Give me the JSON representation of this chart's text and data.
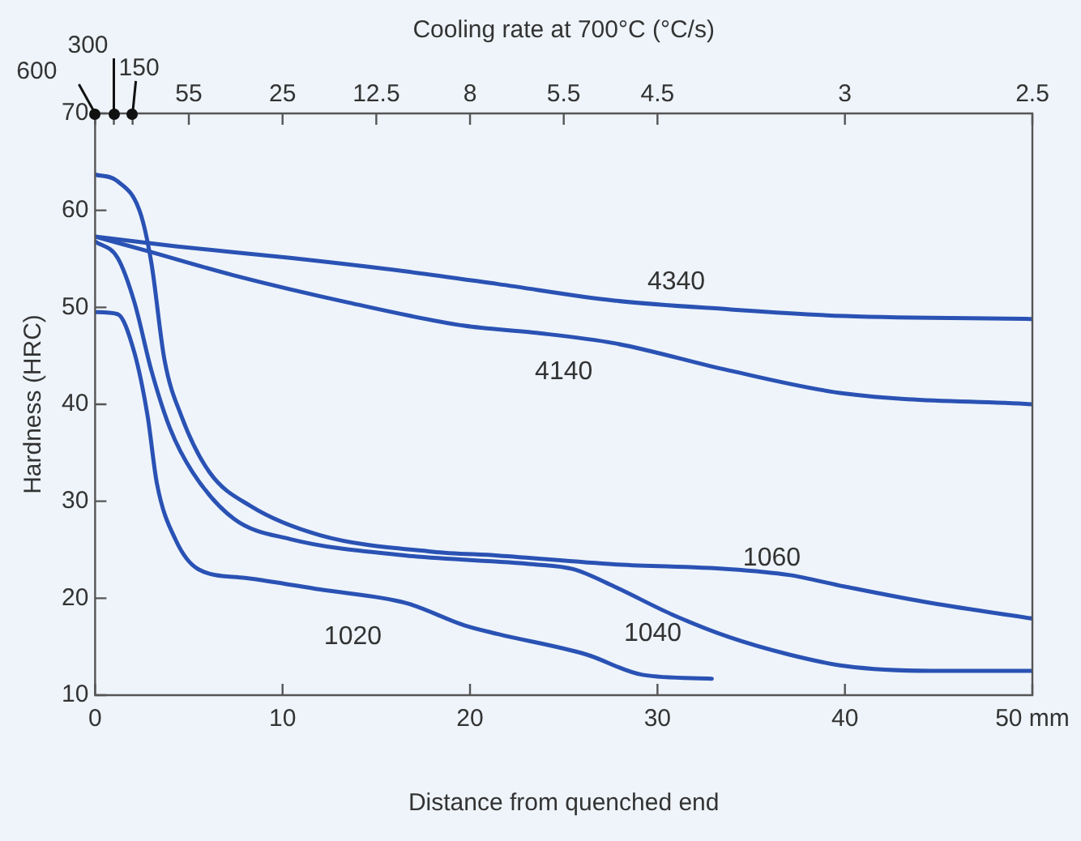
{
  "chart_data": {
    "type": "line",
    "xlabel": "Distance from quenched end",
    "ylabel": "Hardness (HRC)",
    "x2label": "Cooling rate at 700°C (°C/s)",
    "xlim": [
      0,
      50
    ],
    "xticks": [
      0,
      10,
      20,
      30,
      40,
      {
        "value": 50,
        "label": "50 mm"
      }
    ],
    "ylim": [
      10,
      70
    ],
    "yticks": [
      10,
      20,
      30,
      40,
      50,
      60,
      70
    ],
    "annotations": [
      "600",
      "300",
      "150",
      "55",
      "25",
      "12.5",
      "8",
      "5.5",
      "4.5",
      "3",
      "2.5"
    ],
    "marker": "none",
    "line_style": "solid",
    "series": [
      {
        "name": "4340",
        "color": "#2a52b4",
        "x": [
          0,
          4.3,
          10.4,
          16.6,
          21.5,
          27.7,
          33.8,
          40,
          50
        ],
        "values": [
          57.3,
          56.3,
          55.1,
          53.7,
          52.4,
          50.7,
          49.8,
          49.1,
          48.8
        ]
      },
      {
        "name": "4140",
        "color": "#2a52b4",
        "x": [
          0,
          2.8,
          7.4,
          13.5,
          19.7,
          23.4,
          27.7,
          33.8,
          40,
          50
        ],
        "values": [
          57.3,
          55.8,
          53.3,
          50.5,
          48.1,
          47.4,
          46.3,
          43.5,
          41.1,
          40
        ]
      },
      {
        "name": "1060",
        "color": "#2a52b4",
        "x": [
          0,
          1.2,
          2.4,
          3,
          3.7,
          4.6,
          6.1,
          8.3,
          12,
          18,
          21.5,
          27.7,
          33.8,
          37,
          40,
          44.6,
          50
        ],
        "values": [
          63.7,
          63,
          59.8,
          54.6,
          44.6,
          38.8,
          33,
          29.5,
          26.5,
          24.8,
          24.4,
          23.5,
          23,
          22.4,
          21.2,
          19.5,
          17.9
        ]
      },
      {
        "name": "1040",
        "color": "#2a52b4",
        "x": [
          0,
          1.2,
          2.1,
          3,
          4,
          5.2,
          7.4,
          10.4,
          16.6,
          23.4,
          25.5,
          27.7,
          30.8,
          33.8,
          37,
          40,
          44.6,
          50
        ],
        "values": [
          56.8,
          55.1,
          50.5,
          43.5,
          37.5,
          33,
          28.2,
          26.1,
          24.4,
          23.5,
          23,
          21.2,
          18.3,
          16,
          14.2,
          13,
          12.5,
          12.5
        ]
      },
      {
        "name": "1020",
        "color": "#2a52b4",
        "x": [
          0,
          1.2,
          2.1,
          2.8,
          3.3,
          4.3,
          5.5,
          8,
          12,
          16.6,
          19.7,
          21.5,
          26.2,
          29.2,
          32.9
        ],
        "values": [
          49.5,
          49.3,
          45.3,
          38.8,
          31.8,
          26,
          23,
          22.1,
          20.9,
          19.5,
          17.2,
          16.3,
          14.2,
          12.1,
          11.7
        ]
      }
    ]
  }
}
